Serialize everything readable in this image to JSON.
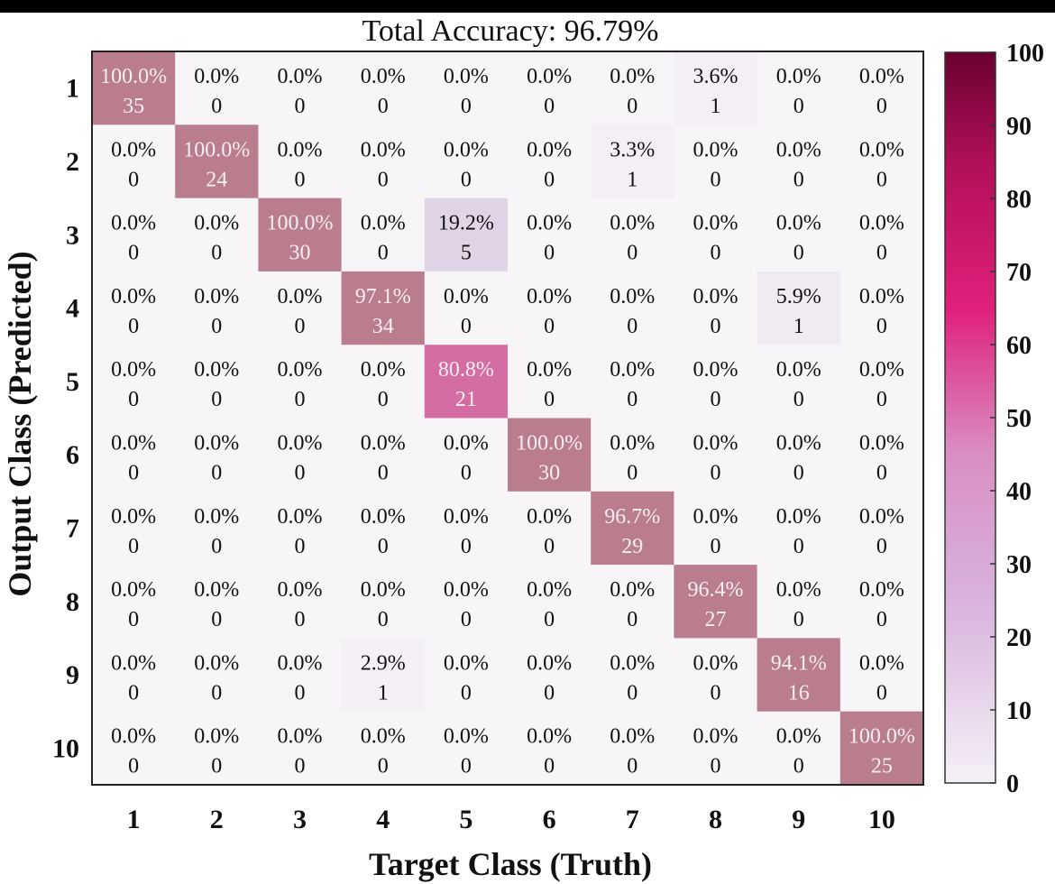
{
  "chart_data": {
    "type": "heatmap",
    "title": "Total Accuracy: 96.79%",
    "xlabel": "Target Class (Truth)",
    "ylabel": "Output Class (Predicted)",
    "x_categories": [
      "1",
      "2",
      "3",
      "4",
      "5",
      "6",
      "7",
      "8",
      "9",
      "10"
    ],
    "y_categories": [
      "1",
      "2",
      "3",
      "4",
      "5",
      "6",
      "7",
      "8",
      "9",
      "10"
    ],
    "percentages": [
      [
        "100.0%",
        "0.0%",
        "0.0%",
        "0.0%",
        "0.0%",
        "0.0%",
        "0.0%",
        "3.6%",
        "0.0%",
        "0.0%"
      ],
      [
        "0.0%",
        "100.0%",
        "0.0%",
        "0.0%",
        "0.0%",
        "0.0%",
        "3.3%",
        "0.0%",
        "0.0%",
        "0.0%"
      ],
      [
        "0.0%",
        "0.0%",
        "100.0%",
        "0.0%",
        "19.2%",
        "0.0%",
        "0.0%",
        "0.0%",
        "0.0%",
        "0.0%"
      ],
      [
        "0.0%",
        "0.0%",
        "0.0%",
        "97.1%",
        "0.0%",
        "0.0%",
        "0.0%",
        "0.0%",
        "5.9%",
        "0.0%"
      ],
      [
        "0.0%",
        "0.0%",
        "0.0%",
        "0.0%",
        "80.8%",
        "0.0%",
        "0.0%",
        "0.0%",
        "0.0%",
        "0.0%"
      ],
      [
        "0.0%",
        "0.0%",
        "0.0%",
        "0.0%",
        "0.0%",
        "100.0%",
        "0.0%",
        "0.0%",
        "0.0%",
        "0.0%"
      ],
      [
        "0.0%",
        "0.0%",
        "0.0%",
        "0.0%",
        "0.0%",
        "0.0%",
        "96.7%",
        "0.0%",
        "0.0%",
        "0.0%"
      ],
      [
        "0.0%",
        "0.0%",
        "0.0%",
        "0.0%",
        "0.0%",
        "0.0%",
        "0.0%",
        "96.4%",
        "0.0%",
        "0.0%"
      ],
      [
        "0.0%",
        "0.0%",
        "0.0%",
        "2.9%",
        "0.0%",
        "0.0%",
        "0.0%",
        "0.0%",
        "94.1%",
        "0.0%"
      ],
      [
        "0.0%",
        "0.0%",
        "0.0%",
        "0.0%",
        "0.0%",
        "0.0%",
        "0.0%",
        "0.0%",
        "0.0%",
        "100.0%"
      ]
    ],
    "counts": [
      [
        35,
        0,
        0,
        0,
        0,
        0,
        0,
        1,
        0,
        0
      ],
      [
        0,
        24,
        0,
        0,
        0,
        0,
        1,
        0,
        0,
        0
      ],
      [
        0,
        0,
        30,
        0,
        5,
        0,
        0,
        0,
        0,
        0
      ],
      [
        0,
        0,
        0,
        34,
        0,
        0,
        0,
        0,
        1,
        0
      ],
      [
        0,
        0,
        0,
        0,
        21,
        0,
        0,
        0,
        0,
        0
      ],
      [
        0,
        0,
        0,
        0,
        0,
        30,
        0,
        0,
        0,
        0
      ],
      [
        0,
        0,
        0,
        0,
        0,
        0,
        29,
        0,
        0,
        0
      ],
      [
        0,
        0,
        0,
        0,
        0,
        0,
        0,
        27,
        0,
        0
      ],
      [
        0,
        0,
        0,
        1,
        0,
        0,
        0,
        0,
        16,
        0
      ],
      [
        0,
        0,
        0,
        0,
        0,
        0,
        0,
        0,
        0,
        25
      ]
    ],
    "colorbar": {
      "range": [
        0,
        100
      ],
      "ticks": [
        "0",
        "10",
        "20",
        "30",
        "40",
        "50",
        "60",
        "70",
        "80",
        "90",
        "100"
      ]
    },
    "colors": {
      "low": "#f7f5f8",
      "mid": "#e0207a",
      "high": "#6a0030",
      "diag_dim": "#b97d8d",
      "grid_border": "#222222"
    }
  }
}
